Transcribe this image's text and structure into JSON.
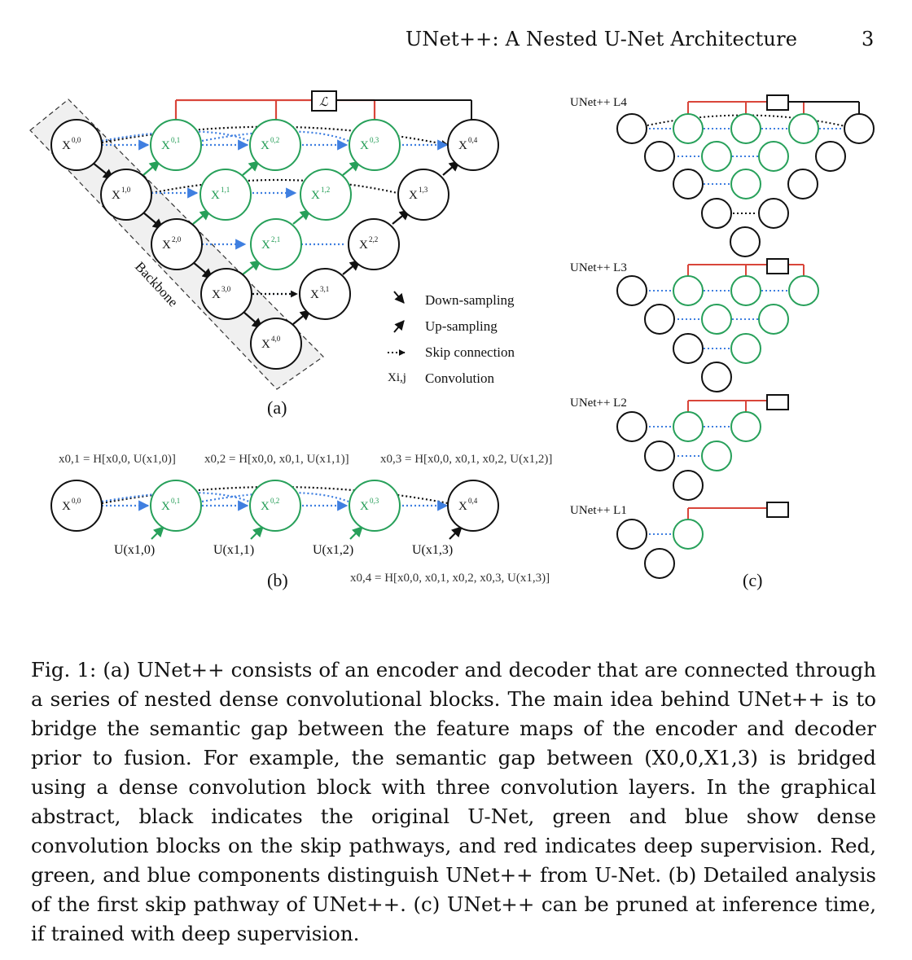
{
  "header": {
    "title": "UNet++: A Nested U-Net Architecture",
    "page_number": "3"
  },
  "panel_a": {
    "label": "(a)",
    "backbone_label": "Backbone",
    "loss_symbol": "ℒ",
    "nodes": [
      "X0,0",
      "X1,0",
      "X2,0",
      "X3,0",
      "X4,0",
      "X0,1",
      "X1,1",
      "X2,1",
      "X0,2",
      "X1,2",
      "X0,3",
      "X0,4",
      "X1,3",
      "X2,2",
      "X3,1"
    ],
    "legend": {
      "down": "Down-sampling",
      "up": "Up-sampling",
      "skip": "Skip connection",
      "conv_symbol": "Xi,j",
      "conv": "Convolution"
    }
  },
  "panel_b": {
    "label": "(b)",
    "eq1": "x0,1 = H[x0,0, U(x1,0)]",
    "eq2": "x0,2 = H[x0,0, x0,1, U(x1,1)]",
    "eq3": "x0,3 = H[x0,0, x0,1, x0,2, U(x1,2)]",
    "eq4": "x0,4 = H[x0,0, x0,1, x0,2, x0,3, U(x1,3)]",
    "inputs": [
      "U(x1,0)",
      "U(x1,1)",
      "U(x1,2)",
      "U(x1,3)"
    ]
  },
  "panel_c": {
    "label": "(c)",
    "titles": [
      "UNet++ L4",
      "UNet++ L3",
      "UNet++ L2",
      "UNet++ L1"
    ]
  },
  "caption": {
    "prefix": "Fig. 1: ",
    "text": "(a) UNet++ consists of an encoder and decoder that are connected through a series of nested dense convolutional blocks. The main idea behind UNet++ is to bridge the semantic gap between the feature maps of the encoder and decoder prior to fusion. For example, the semantic gap between (X0,0,X1,3) is bridged using a dense convolution block with three convolution layers. In the graphical abstract, black indicates the original U-Net, green and blue show dense convolution blocks on the skip pathways, and red indicates deep supervision. Red, green, and blue components distinguish UNet++ from U-Net. (b) Detailed analysis of the first skip pathway of UNet++. (c) UNet++ can be pruned at inference time, if trained with deep supervision."
  },
  "colors": {
    "red": "#d9453a",
    "green": "#27a05a",
    "blue": "#3f7fe0",
    "black": "#111111"
  }
}
